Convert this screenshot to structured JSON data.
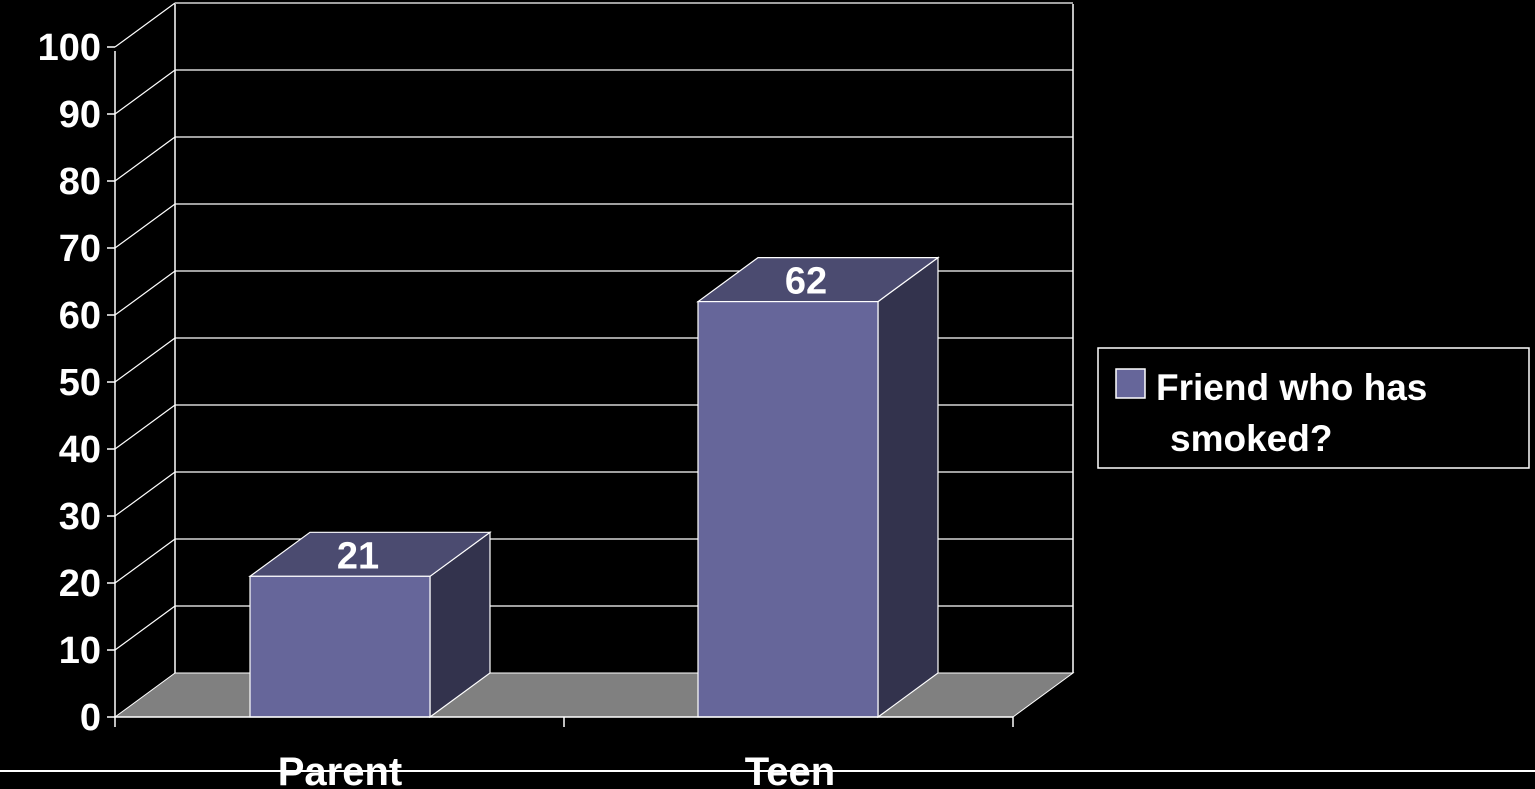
{
  "chart_data": {
    "type": "bar",
    "categories": [
      "Parent",
      "Teen"
    ],
    "series": [
      {
        "name": "Friend who has smoked?",
        "legend_lines": [
          "Friend who has",
          "smoked?"
        ],
        "values": [
          21,
          62
        ],
        "data_labels": [
          "21",
          "62"
        ]
      }
    ],
    "yticks": [
      "0",
      "10",
      "20",
      "30",
      "40",
      "50",
      "60",
      "70",
      "80",
      "90",
      "100"
    ],
    "ylim": [
      0,
      100
    ],
    "title": "",
    "xlabel": "",
    "ylabel": "",
    "grid": true,
    "legend_position": "right",
    "colors": {
      "background": "#000000",
      "bar_front": "#66669a",
      "bar_top": "#4b4b70",
      "bar_side": "#33334d",
      "floor": "#808080",
      "gridlines": "#ffffff",
      "text": "#ffffff"
    }
  }
}
